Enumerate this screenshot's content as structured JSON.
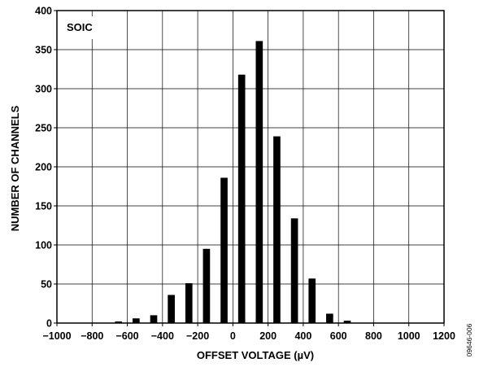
{
  "chart_data": {
    "type": "bar",
    "annotation": "SOIC",
    "xlabel": "OFFSET VOLTAGE (µV)",
    "ylabel": "NUMBER OF CHANNELS",
    "figure_id": "09646-006",
    "xlim": [
      -1000,
      1200
    ],
    "ylim": [
      0,
      400
    ],
    "x_ticks": [
      -1000,
      -800,
      -600,
      -400,
      -200,
      0,
      200,
      400,
      600,
      800,
      1000,
      1200
    ],
    "x_tick_labels": [
      "−1000",
      "−800",
      "−600",
      "−400",
      "−200",
      "0",
      "200",
      "400",
      "600",
      "800",
      "1000",
      "1200"
    ],
    "y_ticks": [
      0,
      50,
      100,
      150,
      200,
      250,
      300,
      350,
      400
    ],
    "y_tick_labels": [
      "0",
      "50",
      "100",
      "150",
      "200",
      "250",
      "300",
      "350",
      "400"
    ],
    "grid": true,
    "bar_width": 40,
    "x": [
      -650,
      -550,
      -450,
      -350,
      -250,
      -150,
      -50,
      50,
      150,
      250,
      350,
      450,
      550,
      650
    ],
    "values": [
      2,
      6,
      10,
      36,
      51,
      95,
      186,
      318,
      361,
      239,
      134,
      57,
      12,
      3
    ]
  }
}
